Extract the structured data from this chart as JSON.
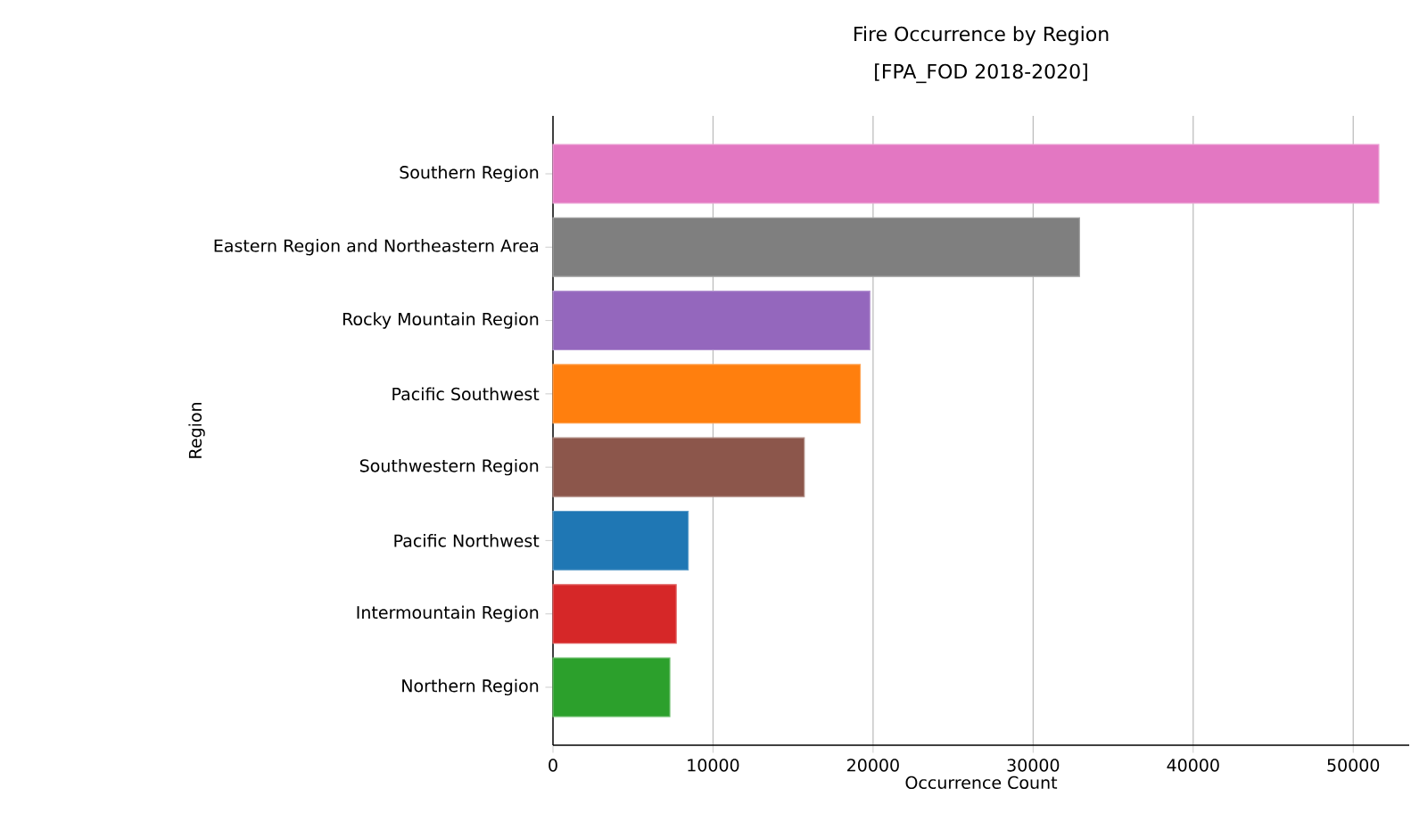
{
  "chart_data": {
    "type": "bar",
    "orientation": "horizontal",
    "title": "Fire Occurrence by Region",
    "subtitle": "[FPA_FOD 2018-2020]",
    "xlabel": "Occurrence Count",
    "ylabel": "Region",
    "categories": [
      "Southern Region",
      "Eastern Region and Northeastern Area",
      "Rocky Mountain Region",
      "Pacific Southwest",
      "Southwestern Region",
      "Pacific Northwest",
      "Intermountain Region",
      "Northern Region"
    ],
    "values": [
      51600,
      32900,
      19800,
      19200,
      15700,
      8450,
      7700,
      7300
    ],
    "colors": [
      "#e377c2",
      "#7f7f7f",
      "#9467bd",
      "#ff7f0e",
      "#8c564b",
      "#1f77b4",
      "#d62728",
      "#2ca02c"
    ],
    "xlim": [
      0,
      53500
    ],
    "xticks": [
      0,
      10000,
      20000,
      30000,
      40000,
      50000
    ],
    "grid": "x"
  }
}
